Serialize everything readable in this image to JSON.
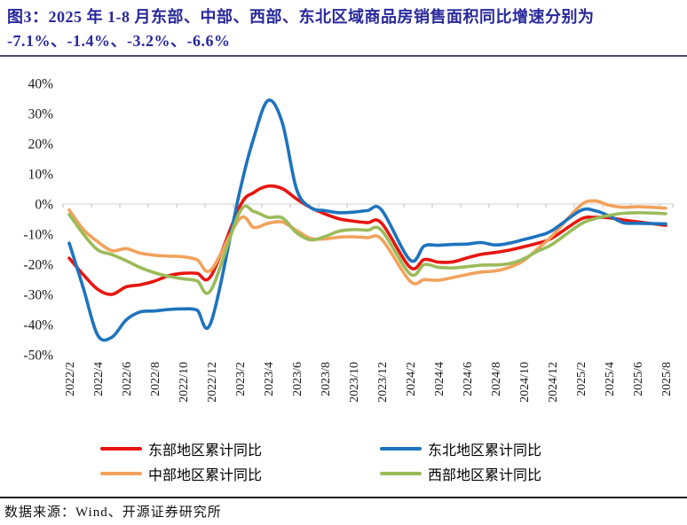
{
  "title": {
    "line1": "图3：2025 年 1-8 月东部、中部、西部、东北区域商品房销售面积同比增速分别为",
    "line2": "-7.1%、-1.4%、-3.2%、-6.6%"
  },
  "source_note": "数据来源：Wind、开源证券研究所",
  "colors": {
    "title_text": "#28289b",
    "title_rule": "#4d4d73",
    "gridline": "#d9d9d9",
    "tick": "#bfbfbf",
    "axis_text": "#1a1a1a"
  },
  "legend": {
    "columns": [
      [
        0,
        2
      ],
      [
        1,
        3
      ]
    ]
  },
  "chart_data": {
    "type": "line",
    "grid": "only zero line",
    "legend_position": "bottom, two columns",
    "y_axis": {
      "min": -50,
      "max": 40,
      "step": 10,
      "unit": "%"
    },
    "y_tick_labels": [
      "40%",
      "30%",
      "20%",
      "10%",
      "0%",
      "-10%",
      "-20%",
      "-30%",
      "-40%",
      "-50%"
    ],
    "x_tick_labels": [
      "2022/2",
      "2022/4",
      "2022/6",
      "2022/8",
      "2022/10",
      "2022/12",
      "2023/2",
      "2023/4",
      "2023/6",
      "2023/8",
      "2023/10",
      "2023/12",
      "2024/2",
      "2024/4",
      "2024/6",
      "2024/8",
      "2024/10",
      "2024/12",
      "2025/2",
      "2025/4",
      "2025/6",
      "2025/8"
    ],
    "x": [
      "2022/2",
      "2022/3",
      "2022/4",
      "2022/5",
      "2022/6",
      "2022/7",
      "2022/8",
      "2022/9",
      "2022/10",
      "2022/11",
      "2022/12",
      "2023/2",
      "2023/3",
      "2023/4",
      "2023/5",
      "2023/6",
      "2023/7",
      "2023/8",
      "2023/9",
      "2023/10",
      "2023/11",
      "2023/12",
      "2024/2",
      "2024/3",
      "2024/4",
      "2024/5",
      "2024/6",
      "2024/7",
      "2024/8",
      "2024/9",
      "2024/10",
      "2024/11",
      "2024/12",
      "2025/2",
      "2025/3",
      "2025/4",
      "2025/5",
      "2025/6",
      "2025/7",
      "2025/8"
    ],
    "series": [
      {
        "name": "东部地区累计同比",
        "color": "#e8150f",
        "values": [
          -18,
          -23.5,
          -28.3,
          -30,
          -27.5,
          -26.8,
          -25.6,
          -23.8,
          -23,
          -23,
          -23.7,
          -0.9,
          3.8,
          5.9,
          5.1,
          1.7,
          -1.2,
          -3.3,
          -4.9,
          -5.7,
          -6.2,
          -6.4,
          -21,
          -18.4,
          -19.3,
          -19.2,
          -17.9,
          -16.7,
          -16.1,
          -15.3,
          -14.2,
          -13,
          -11.3,
          -5.1,
          -4.4,
          -4.6,
          -5.3,
          -5.9,
          -6.5,
          -7.1
        ]
      },
      {
        "name": "东北地区累计同比",
        "color": "#1e73be",
        "values": [
          -13,
          -28,
          -43.5,
          -44.2,
          -38.5,
          -35.8,
          -35.5,
          -35,
          -34.8,
          -35.2,
          -39,
          4,
          22,
          34.3,
          27,
          5,
          -1.2,
          -2.2,
          -2.9,
          -2.7,
          -2.2,
          -2,
          -18.6,
          -13.9,
          -13.7,
          -13.4,
          -13.3,
          -12.8,
          -13.6,
          -13,
          -11.8,
          -10.6,
          -8.8,
          -2.2,
          -2.2,
          -3.9,
          -6.2,
          -6.4,
          -6.5,
          -6.6
        ]
      },
      {
        "name": "中部地区累计同比",
        "color": "#f2a25c",
        "values": [
          -2,
          -8.5,
          -12.5,
          -15.5,
          -14.8,
          -16.3,
          -17,
          -17.3,
          -17.5,
          -18.5,
          -21.8,
          -4.9,
          -7.8,
          -6.4,
          -6,
          -8.8,
          -11.4,
          -11.6,
          -11,
          -10.9,
          -11.2,
          -11.7,
          -25.6,
          -25.1,
          -25.3,
          -24.4,
          -23.4,
          -22.6,
          -22.2,
          -21,
          -18.8,
          -14.8,
          -10.6,
          -0.5,
          1,
          -0.4,
          -1.1,
          -0.9,
          -1.1,
          -1.4
        ]
      },
      {
        "name": "西部地区累计同比",
        "color": "#9bbb59",
        "values": [
          -3.5,
          -10,
          -15.2,
          -16.8,
          -18.8,
          -21.1,
          -22.8,
          -24,
          -24.8,
          -25.5,
          -28.4,
          -2.7,
          -2.5,
          -4.4,
          -4.6,
          -9.5,
          -11.9,
          -10.8,
          -9,
          -8.5,
          -8.7,
          -8.8,
          -23.2,
          -20.1,
          -21,
          -21.2,
          -20.8,
          -20.3,
          -20.2,
          -19.8,
          -18.2,
          -15.6,
          -13.4,
          -6.7,
          -4.9,
          -3.8,
          -3.1,
          -2.9,
          -3,
          -3.2
        ]
      }
    ],
    "draw_order": [
      0,
      2,
      1,
      3
    ]
  }
}
